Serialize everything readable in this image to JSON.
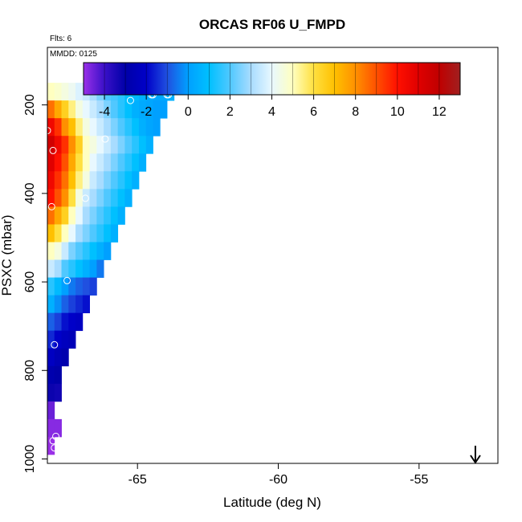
{
  "chart_data": {
    "type": "heatmap",
    "title": "ORCAS RF06 U_FMPD",
    "flights_label": "Flts: 6",
    "date_label": "MMDD: 0125",
    "xlabel": "Latitude (deg N)",
    "ylabel": "PSXC (mbar)",
    "xlim": [
      -68.2,
      -52.2
    ],
    "ylim": [
      1010,
      70
    ],
    "y_reversed": true,
    "x_ticks": [
      -65,
      -60,
      -55
    ],
    "x_tick_labels": [
      "-65",
      "-60",
      "-55"
    ],
    "y_ticks": [
      200,
      400,
      600,
      800,
      1000
    ],
    "y_tick_labels": [
      "200",
      "400",
      "600",
      "800",
      "1000"
    ],
    "colorbar": {
      "min": -5,
      "max": 13,
      "ticks": [
        -4,
        -2,
        0,
        2,
        4,
        6,
        8,
        10,
        12
      ],
      "tick_labels": [
        "-4",
        "-2",
        "0",
        "2",
        "4",
        "6",
        "8",
        "10",
        "12"
      ],
      "stops": [
        [
          -5,
          "#9a30e8"
        ],
        [
          -4,
          "#3a10c8"
        ],
        [
          -3,
          "#0000a8"
        ],
        [
          -2,
          "#0000c8"
        ],
        [
          -1,
          "#2050e0"
        ],
        [
          0,
          "#00a0ff"
        ],
        [
          1,
          "#00c0ff"
        ],
        [
          2,
          "#50c8ff"
        ],
        [
          3,
          "#a8dcff"
        ],
        [
          4,
          "#e8f8ff"
        ],
        [
          5,
          "#ffffc0"
        ],
        [
          6,
          "#ffe040"
        ],
        [
          7,
          "#ffc000"
        ],
        [
          8,
          "#ff9000"
        ],
        [
          9,
          "#ff5000"
        ],
        [
          10,
          "#ff1000"
        ],
        [
          11,
          "#e00000"
        ],
        [
          12,
          "#c00000"
        ],
        [
          13,
          "#a02020"
        ]
      ]
    },
    "bin_width_deg": 0.25,
    "bin_height_mbar": 20,
    "rows": [
      {
        "p": 170,
        "lat_start": -68.2,
        "values": [
          5,
          4.8,
          4.5,
          4.2,
          3.8,
          3.5,
          3,
          2.5,
          2,
          1.8,
          1.5,
          1,
          0.8,
          0.5,
          0.3,
          0.2,
          0.3,
          0.5
        ]
      },
      {
        "p": 210,
        "lat_start": -68.2,
        "values": [
          8.5,
          7.5,
          6.5,
          5.5,
          4.5,
          4,
          3.5,
          3,
          2.5,
          2,
          1.5,
          1,
          0.5,
          0.3,
          0.2,
          0,
          0
        ]
      },
      {
        "p": 250,
        "lat_start": -68.2,
        "values": [
          10.5,
          9.5,
          8,
          7,
          5.5,
          4.5,
          4,
          3.5,
          3,
          2.5,
          2,
          1.5,
          1,
          0.5,
          0.2,
          0
        ]
      },
      {
        "p": 290,
        "lat_start": -68.2,
        "values": [
          11.5,
          10.5,
          9.5,
          8,
          6.5,
          5,
          4.5,
          4,
          3.5,
          3,
          2.5,
          2,
          1.5,
          1,
          0.5
        ]
      },
      {
        "p": 330,
        "lat_start": -68.2,
        "values": [
          11,
          10,
          9,
          7.5,
          6,
          5,
          4,
          3.5,
          3,
          2.5,
          2,
          1.5,
          1,
          0.5
        ]
      },
      {
        "p": 370,
        "lat_start": -68.2,
        "values": [
          10.5,
          9.5,
          8.5,
          7,
          5.5,
          4.5,
          3.5,
          3,
          2.5,
          2,
          1.5,
          1,
          0.5
        ]
      },
      {
        "p": 410,
        "lat_start": -68.2,
        "values": [
          10,
          9,
          8,
          6,
          4.5,
          3.5,
          3,
          2.5,
          2,
          1.5,
          1,
          0.5
        ]
      },
      {
        "p": 450,
        "lat_start": -68.2,
        "values": [
          8.5,
          7.5,
          6.5,
          5,
          4,
          3,
          2.5,
          2,
          1.5,
          1,
          0.5
        ]
      },
      {
        "p": 490,
        "lat_start": -68.2,
        "values": [
          7,
          6,
          5,
          4,
          3,
          2.5,
          2,
          1.5,
          1,
          0.5
        ]
      },
      {
        "p": 530,
        "lat_start": -68.2,
        "values": [
          5,
          4.5,
          3.5,
          2.5,
          2,
          1.5,
          1,
          0.5,
          0
        ]
      },
      {
        "p": 570,
        "lat_start": -68.2,
        "values": [
          3.5,
          3,
          2,
          1.5,
          1,
          0.5,
          0,
          -0.5
        ]
      },
      {
        "p": 610,
        "lat_start": -68.2,
        "values": [
          1.5,
          0.8,
          0,
          -0.5,
          -0.8,
          -1,
          -1.2
        ]
      },
      {
        "p": 650,
        "lat_start": -68.2,
        "values": [
          0.5,
          -0.2,
          -0.8,
          -1.2,
          -1.5,
          -1.8
        ]
      },
      {
        "p": 690,
        "lat_start": -68.2,
        "values": [
          -0.8,
          -1.2,
          -1.8,
          -2,
          -2.2
        ]
      },
      {
        "p": 730,
        "lat_start": -68.2,
        "values": [
          -1.5,
          -2,
          -2.3,
          -2.5
        ]
      },
      {
        "p": 770,
        "lat_start": -68.2,
        "values": [
          -2.2,
          -2.6,
          -2.8
        ]
      },
      {
        "p": 810,
        "lat_start": -68.2,
        "values": [
          -2.8,
          -3
        ]
      },
      {
        "p": 850,
        "lat_start": -68.2,
        "values": [
          -3.2,
          -3.3
        ]
      },
      {
        "p": 890,
        "lat_start": -68.2,
        "values": [
          -4.5
        ]
      },
      {
        "p": 930,
        "lat_start": -68.2,
        "values": [
          -4.8,
          -4.8
        ]
      },
      {
        "p": 970,
        "lat_start": -68.2,
        "values": [
          -5
        ]
      }
    ],
    "markers": [
      {
        "lat": -64.5,
        "p": 177
      },
      {
        "lat": -64.45,
        "p": 177
      },
      {
        "lat": -63.95,
        "p": 177
      },
      {
        "lat": -63.9,
        "p": 177
      },
      {
        "lat": -65.25,
        "p": 190
      },
      {
        "lat": -68.2,
        "p": 258
      },
      {
        "lat": -68.0,
        "p": 303
      },
      {
        "lat": -66.15,
        "p": 277
      },
      {
        "lat": -66.85,
        "p": 411
      },
      {
        "lat": -68.05,
        "p": 430
      },
      {
        "lat": -67.5,
        "p": 597
      },
      {
        "lat": -67.95,
        "p": 742
      },
      {
        "lat": -67.9,
        "p": 949
      },
      {
        "lat": -68.0,
        "p": 959
      },
      {
        "lat": -67.95,
        "p": 975
      }
    ],
    "arrow_lat": -53.0,
    "grid": false
  }
}
